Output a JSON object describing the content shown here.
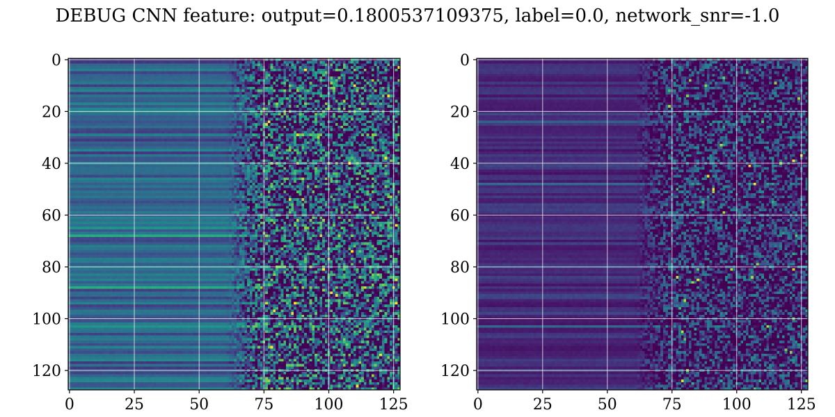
{
  "figure": {
    "title": "DEBUG CNN feature: output=0.1800537109375, label=0.0, network_snr=-1.0"
  },
  "chart_data": [
    {
      "type": "heatmap",
      "title": "",
      "xlabel": "",
      "ylabel": "",
      "xlim": [
        -0.5,
        127.5
      ],
      "ylim": [
        127.5,
        -0.5
      ],
      "grid": true,
      "colormap": "viridis",
      "rows": 128,
      "cols": 128,
      "xticks": [
        0,
        25,
        50,
        75,
        100,
        125
      ],
      "yticks": [
        0,
        20,
        40,
        60,
        80,
        100,
        120
      ],
      "pattern": {
        "smooth_until_col": 60,
        "noisy_from_col": 75,
        "base_level": 0.32,
        "row_variation": 0.14,
        "noise_amplitude": 0.55,
        "bright_rows": [
          63,
          65,
          68,
          103,
          88
        ]
      }
    },
    {
      "type": "heatmap",
      "title": "",
      "xlabel": "",
      "ylabel": "",
      "xlim": [
        -0.5,
        127.5
      ],
      "ylim": [
        127.5,
        -0.5
      ],
      "grid": true,
      "colormap": "viridis",
      "rows": 128,
      "cols": 128,
      "xticks": [
        0,
        25,
        50,
        75,
        100,
        125
      ],
      "yticks": [
        0,
        20,
        40,
        60,
        80,
        100,
        120
      ],
      "pattern": {
        "smooth_until_col": 60,
        "noisy_from_col": 75,
        "base_level": 0.14,
        "row_variation": 0.08,
        "noise_amplitude": 0.38,
        "bright_rows": [
          103,
          24,
          48
        ]
      }
    }
  ],
  "colors": {
    "viridis_low": "#440154",
    "viridis_mid": "#21918c",
    "viridis_high": "#fde725",
    "grid": "#ffffff",
    "axes": "#000000"
  }
}
